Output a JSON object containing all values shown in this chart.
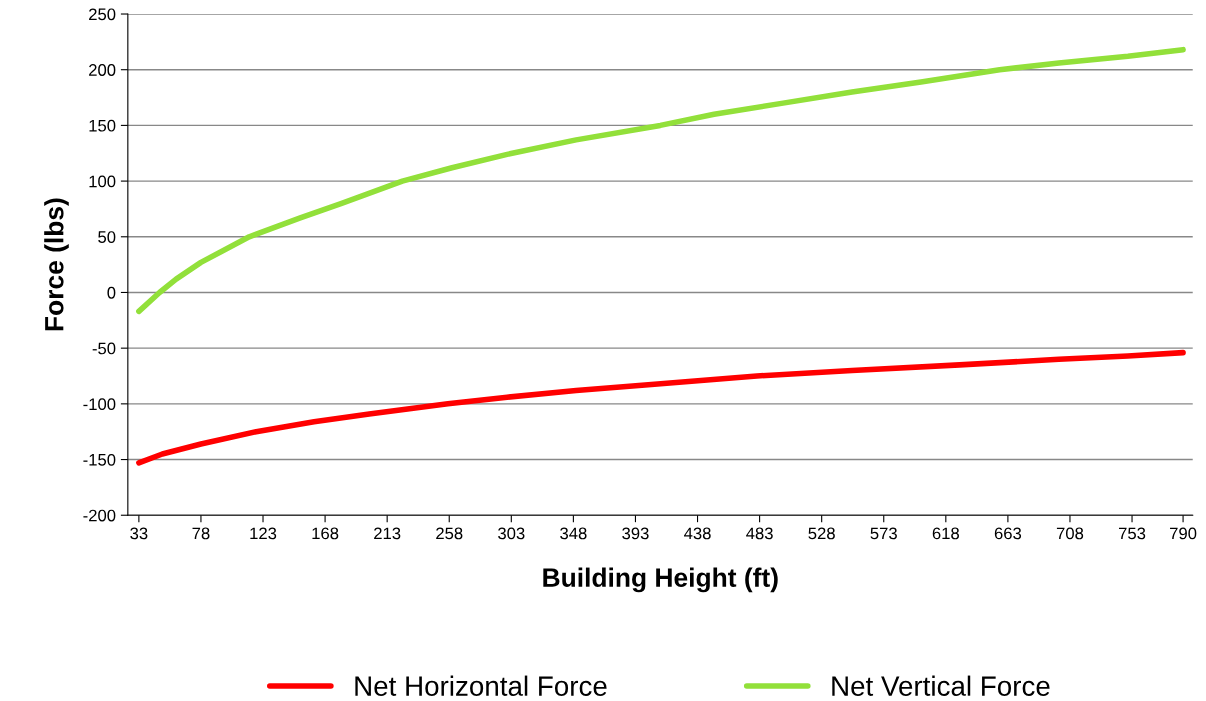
{
  "chart_data": {
    "type": "line",
    "xlabel": "Building Height (ft)",
    "ylabel": "Force (lbs)",
    "xlim": [
      25,
      797
    ],
    "xticks": [
      33,
      78,
      123,
      168,
      213,
      258,
      303,
      348,
      393,
      438,
      483,
      528,
      573,
      618,
      663,
      708,
      753,
      790
    ],
    "ylim": [
      -200,
      250
    ],
    "yticks": [
      -200,
      -150,
      -100,
      -50,
      0,
      50,
      100,
      150,
      200,
      250
    ],
    "grid": "y",
    "legend": "bottom",
    "marker": "none",
    "line_style": "solid",
    "series": [
      {
        "name": "Net Horizontal Force",
        "color": "#ff0000",
        "x": [
          33,
          50,
          78,
          118,
          160,
          200,
          257,
          300,
          350,
          400,
          481,
          550,
          628,
          700,
          750,
          790
        ],
        "values": [
          -153,
          -145,
          -136,
          -125,
          -116,
          -109,
          -100,
          -94,
          -88,
          -83,
          -75,
          -70,
          -65,
          -60,
          -57,
          -54
        ]
      },
      {
        "name": "Net Vertical Force",
        "color": "#92e03a",
        "x": [
          33,
          48,
          60,
          78,
          113,
          150,
          180,
          224,
          260,
          300,
          350,
          411,
          450,
          500,
          550,
          600,
          657,
          700,
          750,
          790
        ],
        "values": [
          -17,
          0,
          12,
          27,
          50,
          67,
          80,
          100,
          112,
          124,
          137,
          150,
          160,
          170,
          180,
          189,
          200,
          206,
          212,
          218
        ]
      }
    ]
  }
}
